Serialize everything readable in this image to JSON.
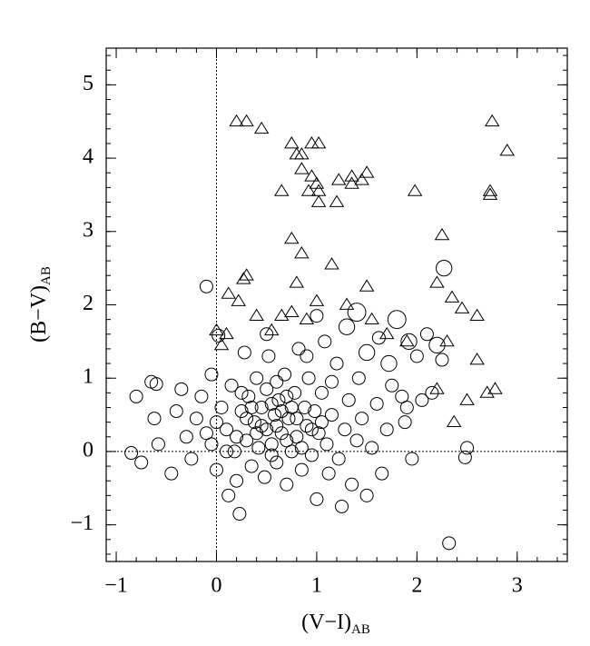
{
  "chart_data": {
    "type": "scatter",
    "xlabel": "(V−I)",
    "xlabel_sub": "AB",
    "ylabel": "(B−V)",
    "ylabel_sub": "AB",
    "xlim": [
      -1.1,
      3.5
    ],
    "ylim": [
      -1.5,
      5.5
    ],
    "xticks": [
      {
        "value": -1,
        "label": "−1"
      },
      0,
      1,
      2,
      3
    ],
    "yticks": [
      {
        "value": -1,
        "label": "−1"
      },
      0,
      1,
      2,
      3,
      4,
      5
    ],
    "reference_lines": {
      "x": 0,
      "y": 0
    },
    "series": [
      {
        "marker": "circle",
        "color": "#000000",
        "x": [
          -0.8,
          -0.85,
          -0.75,
          -0.65,
          -0.6,
          -0.62,
          -0.58,
          -0.45,
          -0.4,
          -0.35,
          -0.3,
          -0.25,
          -0.2,
          -0.15,
          -0.1,
          -0.05,
          -0.05,
          0.0,
          0.02,
          0.05,
          0.1,
          0.12,
          0.15,
          0.18,
          0.2,
          0.23,
          0.25,
          0.28,
          0.3,
          0.32,
          0.35,
          0.38,
          0.4,
          0.42,
          0.45,
          0.48,
          0.5,
          0.5,
          0.52,
          0.55,
          0.58,
          0.6,
          0.62,
          0.65,
          0.68,
          0.7,
          0.72,
          0.75,
          0.78,
          0.8,
          0.82,
          0.85,
          0.88,
          0.9,
          0.92,
          0.95,
          0.98,
          1.0,
          1.02,
          1.05,
          1.08,
          1.1,
          1.12,
          1.15,
          1.2,
          1.22,
          1.25,
          1.28,
          1.3,
          1.32,
          1.35,
          1.4,
          1.42,
          1.45,
          1.5,
          1.5,
          1.55,
          1.6,
          1.62,
          1.65,
          1.7,
          1.72,
          1.75,
          1.8,
          1.85,
          1.88,
          1.9,
          1.92,
          1.95,
          2.0,
          2.05,
          2.1,
          2.15,
          2.2,
          2.27,
          2.25,
          2.32,
          2.5,
          2.48,
          0.3,
          0.4,
          0.55,
          0.6,
          0.65,
          0.7,
          0.45,
          0.35,
          0.75,
          0.8,
          0.2,
          0.1,
          0.0,
          -0.1,
          0.55,
          0.85,
          0.95,
          1.05,
          0.25,
          0.6,
          1.4,
          1.0,
          0.9,
          0.5,
          1.15,
          0.7
        ],
        "values": [
          0.75,
          -0.02,
          -0.15,
          0.95,
          0.92,
          0.45,
          0.1,
          -0.3,
          0.55,
          0.85,
          0.2,
          -0.1,
          0.45,
          0.75,
          2.25,
          1.05,
          0.1,
          -0.25,
          1.58,
          0.6,
          0.3,
          -0.6,
          0.9,
          0.0,
          -0.4,
          -0.85,
          0.55,
          1.35,
          0.15,
          0.75,
          -0.2,
          0.4,
          1.0,
          0.05,
          0.6,
          -0.35,
          0.3,
          0.85,
          1.3,
          0.1,
          0.5,
          -0.15,
          0.7,
          0.25,
          1.05,
          -0.45,
          0.45,
          0.0,
          0.8,
          0.2,
          1.4,
          -0.25,
          0.6,
          0.35,
          1.0,
          -0.05,
          0.55,
          -0.65,
          0.25,
          0.8,
          1.5,
          0.1,
          -0.3,
          0.5,
          1.2,
          -0.1,
          -0.75,
          0.3,
          1.7,
          0.7,
          -0.45,
          0.15,
          1.0,
          0.45,
          -0.6,
          1.35,
          0.05,
          0.65,
          1.55,
          -0.3,
          0.3,
          1.2,
          0.9,
          1.8,
          0.75,
          0.4,
          0.6,
          1.5,
          -0.1,
          1.3,
          0.7,
          1.6,
          0.8,
          1.45,
          2.5,
          1.25,
          -1.25,
          0.05,
          -0.08,
          0.45,
          0.25,
          0.65,
          0.35,
          0.55,
          0.15,
          0.35,
          0.6,
          0.6,
          0.45,
          0.2,
          0.0,
          0.4,
          0.25,
          -0.05,
          0.05,
          0.3,
          0.4,
          0.8,
          0.95,
          1.9,
          1.85,
          1.3,
          1.6,
          0.95,
          0.75
        ],
        "size": [
          1,
          1,
          1,
          1,
          1,
          1,
          1,
          1,
          1,
          1,
          1,
          1,
          1,
          1,
          1,
          1,
          1,
          1,
          1,
          1,
          1,
          1,
          1,
          1,
          1,
          1,
          1,
          1,
          1,
          1,
          1,
          1,
          1,
          1,
          1,
          1,
          1,
          1,
          1,
          1,
          1,
          1,
          1,
          1,
          1,
          1,
          1,
          1,
          1,
          1,
          1,
          1,
          1,
          1,
          1,
          1,
          1,
          1,
          1,
          1,
          1,
          1,
          1,
          1,
          1,
          1,
          1,
          1,
          2,
          1,
          1,
          1,
          1,
          1,
          1,
          2,
          1,
          1,
          1,
          1,
          1,
          2,
          1,
          3,
          1,
          1,
          1,
          2,
          1,
          1,
          1,
          1,
          1,
          2,
          2,
          1,
          1,
          1,
          1,
          1,
          1,
          1,
          1,
          1,
          1,
          1,
          1,
          1,
          1,
          1,
          1,
          1,
          1,
          1,
          1,
          1,
          1,
          1,
          1,
          3,
          1,
          1,
          1,
          1,
          1
        ]
      },
      {
        "marker": "triangle",
        "color": "#000000",
        "x": [
          0.2,
          0.3,
          0.45,
          0.75,
          0.8,
          0.85,
          0.95,
          1.02,
          0.85,
          0.95,
          1.0,
          0.65,
          0.92,
          1.02,
          1.02,
          1.2,
          1.22,
          1.35,
          1.35,
          1.45,
          1.5,
          1.98,
          2.75,
          2.9,
          2.73,
          2.73,
          0.75,
          0.85,
          1.15,
          2.25,
          0.3,
          0.27,
          0.12,
          0.22,
          0.8,
          1.0,
          1.5,
          2.2,
          2.35,
          2.45,
          2.6,
          0.0,
          0.1,
          0.05,
          0.4,
          0.55,
          0.65,
          0.75,
          0.9,
          1.55,
          2.3,
          2.6,
          2.5,
          2.7,
          2.78,
          2.37,
          2.2,
          1.3,
          1.7,
          1.9
        ],
        "values": [
          4.5,
          4.5,
          4.4,
          4.2,
          4.05,
          4.05,
          4.2,
          4.2,
          3.85,
          3.75,
          3.65,
          3.55,
          3.55,
          3.55,
          3.4,
          3.4,
          3.7,
          3.75,
          3.65,
          3.7,
          3.8,
          3.55,
          4.5,
          4.1,
          3.55,
          3.5,
          2.9,
          2.7,
          2.55,
          2.95,
          2.4,
          2.35,
          2.15,
          2.05,
          2.3,
          2.05,
          2.25,
          2.3,
          2.1,
          1.95,
          1.85,
          1.65,
          1.6,
          1.45,
          1.85,
          1.65,
          1.85,
          1.9,
          1.8,
          1.8,
          1.5,
          1.25,
          0.7,
          0.8,
          0.85,
          0.4,
          0.85,
          2.0,
          1.6,
          1.5
        ]
      }
    ]
  }
}
